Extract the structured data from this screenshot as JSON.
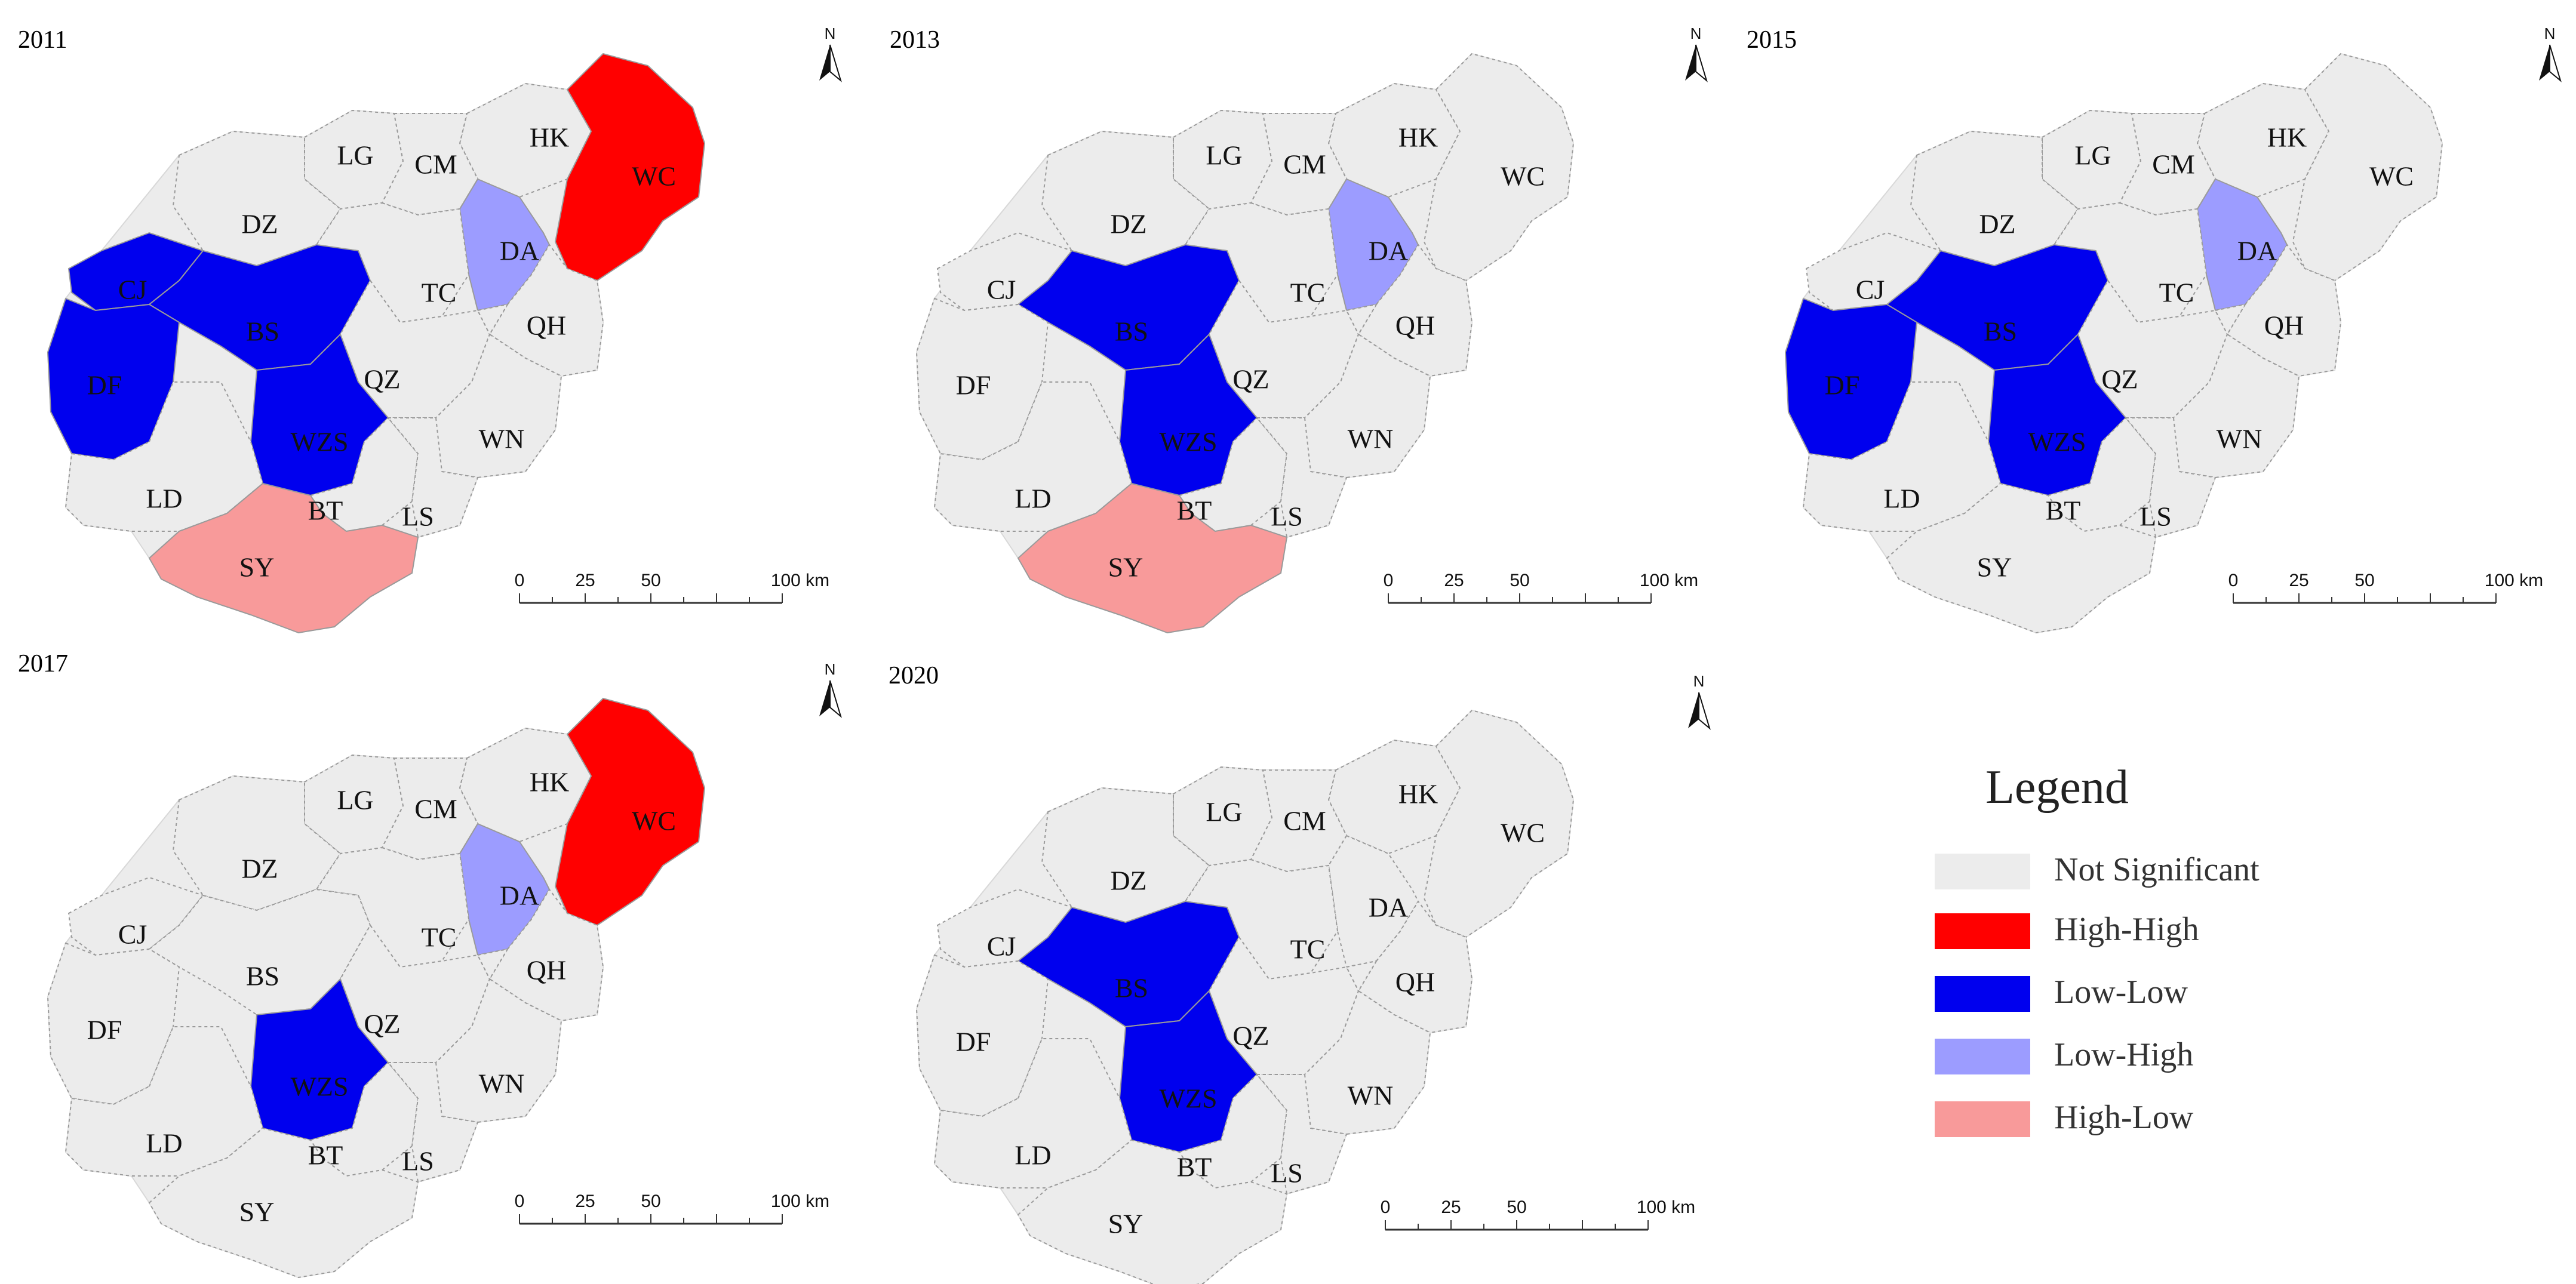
{
  "classes": {
    "NS": {
      "label": "Not Significant",
      "color": "#ececec"
    },
    "HH": {
      "label": "High-High",
      "color": "#ff0000"
    },
    "LL": {
      "label": "Low-Low",
      "color": "#0000ee"
    },
    "LH": {
      "label": "Low-High",
      "color": "#9c9cff"
    },
    "HL": {
      "label": "High-Low",
      "color": "#f89a9a"
    }
  },
  "legend": {
    "title": "Legend",
    "order": [
      "NS",
      "HH",
      "LL",
      "LH",
      "HL"
    ]
  },
  "regions": [
    "HK",
    "WC",
    "LG",
    "CM",
    "DZ",
    "DA",
    "CJ",
    "TC",
    "QH",
    "BS",
    "DF",
    "QZ",
    "WZS",
    "WN",
    "LD",
    "BT",
    "LS",
    "SY"
  ],
  "maps": [
    {
      "year": "2011",
      "classes": {
        "WC": "HH",
        "DA": "LH",
        "CJ": "LL",
        "BS": "LL",
        "DF": "LL",
        "WZS": "LL",
        "SY": "HL"
      }
    },
    {
      "year": "2013",
      "classes": {
        "DA": "LH",
        "BS": "LL",
        "WZS": "LL",
        "SY": "HL"
      }
    },
    {
      "year": "2015",
      "classes": {
        "DA": "LH",
        "BS": "LL",
        "DF": "LL",
        "WZS": "LL"
      }
    },
    {
      "year": "2017",
      "classes": {
        "WC": "HH",
        "DA": "LH",
        "WZS": "LL"
      }
    },
    {
      "year": "2020",
      "classes": {
        "BS": "LL",
        "WZS": "LL"
      }
    }
  ],
  "north_arrow": {
    "letter": "N"
  },
  "scale_bar": {
    "ticks": [
      "0",
      "25",
      "50"
    ],
    "end_label": "100 km"
  }
}
